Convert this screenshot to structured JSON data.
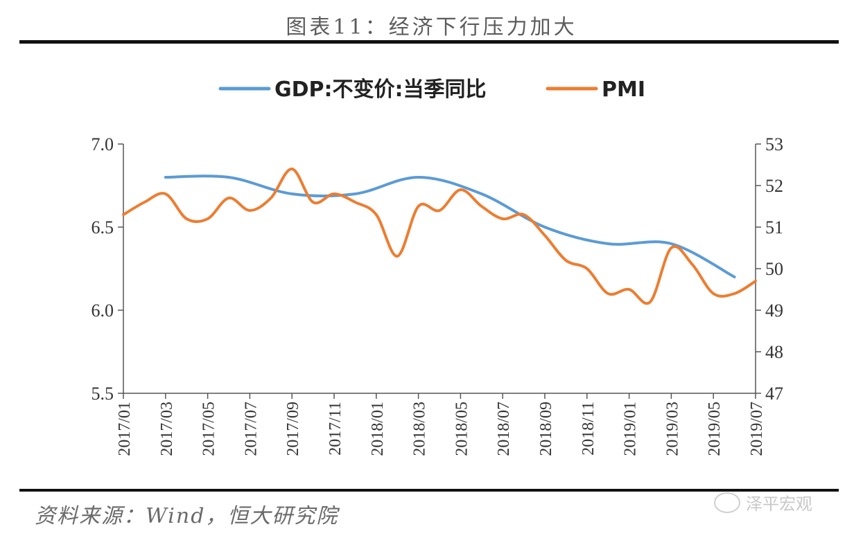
{
  "title": "图表11：经济下行压力加大",
  "source": "资料来源：Wind，恒大研究院",
  "watermark": "泽平宏观",
  "chart_data": {
    "type": "line",
    "x": [
      "2017/01",
      "2017/02",
      "2017/03",
      "2017/04",
      "2017/05",
      "2017/06",
      "2017/07",
      "2017/08",
      "2017/09",
      "2017/10",
      "2017/11",
      "2017/12",
      "2018/01",
      "2018/02",
      "2018/03",
      "2018/04",
      "2018/05",
      "2018/06",
      "2018/07",
      "2018/08",
      "2018/09",
      "2018/10",
      "2018/11",
      "2018/12",
      "2019/01",
      "2019/02",
      "2019/03",
      "2019/04",
      "2019/05",
      "2019/06",
      "2019/07"
    ],
    "tick_labels": [
      "2017/01",
      "2017/03",
      "2017/05",
      "2017/07",
      "2017/09",
      "2017/11",
      "2018/01",
      "2018/03",
      "2018/05",
      "2018/07",
      "2018/09",
      "2018/11",
      "2019/01",
      "2019/03",
      "2019/05",
      "2019/07"
    ],
    "y_left": {
      "ylim": [
        5.5,
        7.0
      ],
      "ticks": [
        "7.0",
        "6.5",
        "6.0",
        "5.5"
      ]
    },
    "y_right": {
      "ylim": [
        47,
        53
      ],
      "ticks": [
        "53",
        "52",
        "51",
        "50",
        "49",
        "48",
        "47"
      ]
    },
    "legend_position": "top",
    "series": [
      {
        "name": "GDP:不变价:当季同比",
        "axis": "left",
        "color": "#5b9bd5",
        "points": [
          [
            "2017/03",
            6.8
          ],
          [
            "2017/06",
            6.8
          ],
          [
            "2017/09",
            6.7
          ],
          [
            "2017/12",
            6.7
          ],
          [
            "2018/03",
            6.8
          ],
          [
            "2018/06",
            6.7
          ],
          [
            "2018/09",
            6.5
          ],
          [
            "2018/12",
            6.4
          ],
          [
            "2019/03",
            6.4
          ],
          [
            "2019/06",
            6.2
          ]
        ]
      },
      {
        "name": "PMI",
        "axis": "right",
        "color": "#ed7d31",
        "values": [
          51.3,
          51.6,
          51.8,
          51.2,
          51.2,
          51.7,
          51.4,
          51.7,
          52.4,
          51.6,
          51.8,
          51.6,
          51.3,
          50.3,
          51.5,
          51.4,
          51.9,
          51.5,
          51.2,
          51.3,
          50.8,
          50.2,
          50.0,
          49.4,
          49.5,
          49.2,
          50.5,
          50.1,
          49.4,
          49.4,
          49.7
        ]
      }
    ]
  }
}
